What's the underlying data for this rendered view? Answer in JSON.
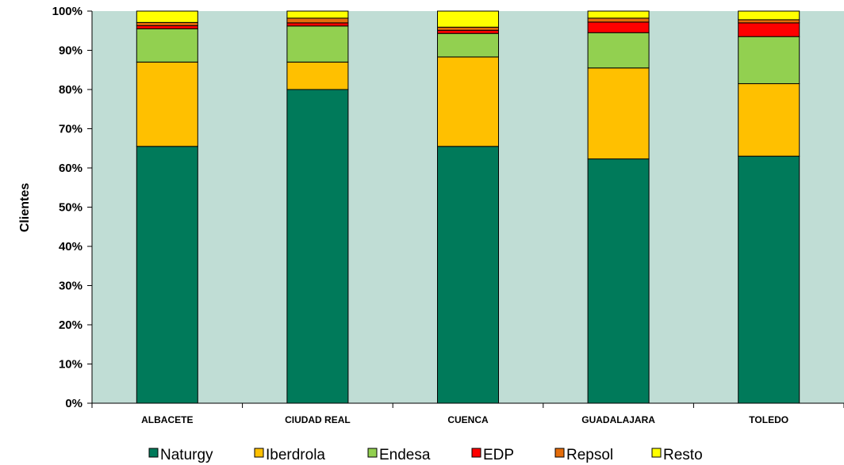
{
  "chart_data": {
    "type": "bar",
    "stacked": true,
    "percent": true,
    "title": "",
    "xlabel": "",
    "ylabel": "Clientes",
    "ylim": [
      0,
      100
    ],
    "yticks": [
      "0%",
      "10%",
      "20%",
      "30%",
      "40%",
      "50%",
      "60%",
      "70%",
      "80%",
      "90%",
      "100%"
    ],
    "categories": [
      "ALBACETE",
      "CIUDAD REAL",
      "CUENCA",
      "GUADALAJARA",
      "TOLEDO"
    ],
    "series": [
      {
        "name": "Naturgy",
        "color": "#007A5A",
        "values": [
          65.5,
          80.0,
          65.5,
          62.3,
          63.0
        ]
      },
      {
        "name": "Iberdrola",
        "color": "#FFC000",
        "values": [
          21.5,
          7.0,
          22.8,
          23.2,
          18.5
        ]
      },
      {
        "name": "Endesa",
        "color": "#92D050",
        "values": [
          8.5,
          9.2,
          6.0,
          9.0,
          12.0
        ]
      },
      {
        "name": "EDP",
        "color": "#FF0000",
        "values": [
          0.8,
          0.8,
          0.8,
          2.7,
          3.5
        ]
      },
      {
        "name": "Repsol",
        "color": "#E46C0A",
        "values": [
          0.8,
          1.2,
          0.8,
          1.0,
          0.8
        ]
      },
      {
        "name": "Resto",
        "color": "#FFFF00",
        "values": [
          2.9,
          1.8,
          4.1,
          1.8,
          2.2
        ]
      }
    ],
    "grid": false,
    "plot_background": "#C0DDD5",
    "legend_position": "bottom"
  }
}
